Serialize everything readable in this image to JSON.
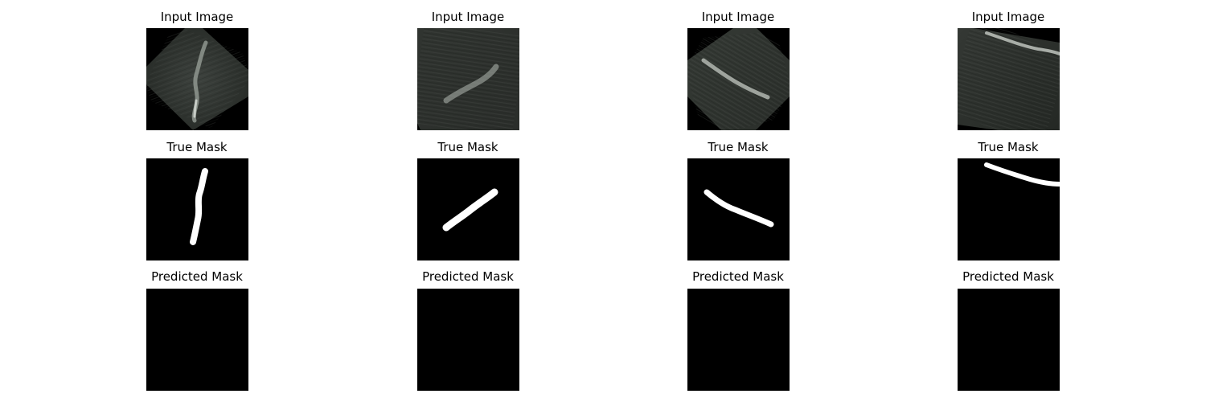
{
  "colors": {
    "background": "#ffffff",
    "image_background": "#000000",
    "mask_foreground": "#ffffff"
  },
  "rows": [
    {
      "title": "Input Image"
    },
    {
      "title": "True Mask"
    },
    {
      "title": "Predicted Mask"
    }
  ],
  "columns_count": 4
}
